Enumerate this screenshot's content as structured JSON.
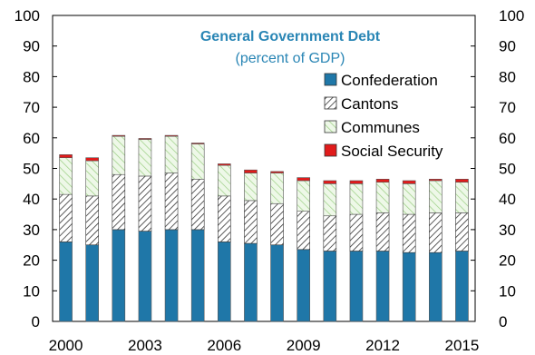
{
  "chart_data": {
    "type": "bar",
    "stacked": true,
    "title": "General Government Debt",
    "subtitle": "(percent of GDP)",
    "xlabel": "",
    "ylabel": "",
    "ylim": [
      0,
      100
    ],
    "y_ticks": [
      0,
      10,
      20,
      30,
      40,
      50,
      60,
      70,
      80,
      90,
      100
    ],
    "y_ticks_right": [
      0,
      10,
      20,
      30,
      40,
      50,
      60,
      70,
      80,
      90,
      100
    ],
    "categories": [
      "2000",
      "2001",
      "2002",
      "2003",
      "2004",
      "2005",
      "2006",
      "2007",
      "2008",
      "2009",
      "2010",
      "2011",
      "2012",
      "2013",
      "2014",
      "2015"
    ],
    "x_tick_labels": [
      "2000",
      "2003",
      "2006",
      "2009",
      "2012",
      "2015"
    ],
    "grid": false,
    "legend_position": "top-right",
    "series": [
      {
        "name": "Confederation",
        "color": "#1f77a8",
        "pattern": "solid",
        "values": [
          26,
          25,
          30,
          29.5,
          30,
          30,
          26,
          25.5,
          25,
          23.5,
          23,
          23,
          23,
          22.5,
          22.5,
          23
        ]
      },
      {
        "name": "Cantons",
        "color": "#ffffff",
        "pattern": "diagonal-hatch",
        "values": [
          15.5,
          16,
          18,
          18,
          18.5,
          16.5,
          15,
          14,
          13.5,
          12.5,
          11.5,
          12,
          12.5,
          12.5,
          13,
          12.5
        ]
      },
      {
        "name": "Communes",
        "color": "#e8f5e0",
        "pattern": "light-green-hatch",
        "values": [
          12,
          11.5,
          12.5,
          12,
          12,
          11.5,
          10,
          9,
          10,
          10,
          10.5,
          10,
          10,
          10,
          10.5,
          10
        ]
      },
      {
        "name": "Social Security",
        "color": "#e11b1b",
        "pattern": "solid",
        "values": [
          1,
          1,
          0.3,
          0.3,
          0.3,
          0.3,
          0.5,
          1,
          0.5,
          1,
          1,
          1,
          1,
          1,
          0.5,
          1
        ]
      }
    ]
  }
}
